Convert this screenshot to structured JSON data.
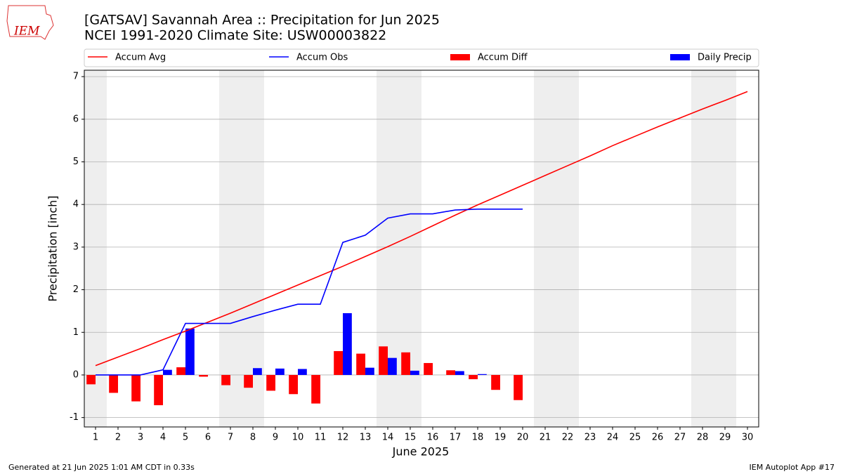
{
  "chart_data": {
    "type": "combo",
    "title": "[GATSAV] Savannah Area :: Precipitation for Jun 2025",
    "subtitle": "NCEI 1991-2020 Climate Site: USW00003822",
    "logo_text": "IEM",
    "x_label": "June 2025",
    "y_label": "Precipitation [inch]",
    "footer_left": "Generated at 21 Jun 2025 1:01 AM CDT in 0.33s",
    "footer_right": "IEM Autoplot App #17",
    "x": [
      1,
      2,
      3,
      4,
      5,
      6,
      7,
      8,
      9,
      10,
      11,
      12,
      13,
      14,
      15,
      16,
      17,
      18,
      19,
      20,
      21,
      22,
      23,
      24,
      25,
      26,
      27,
      28,
      29,
      30
    ],
    "xlim": [
      0.5,
      30.5
    ],
    "xticks": [
      1,
      2,
      3,
      4,
      5,
      6,
      7,
      8,
      9,
      10,
      11,
      12,
      13,
      14,
      15,
      16,
      17,
      18,
      19,
      20,
      21,
      22,
      23,
      24,
      25,
      26,
      27,
      28,
      29,
      30
    ],
    "ylim": [
      -1.22,
      7.15
    ],
    "yticks": [
      -1,
      0,
      1,
      2,
      3,
      4,
      5,
      6,
      7
    ],
    "grid": true,
    "legend": "top",
    "shading": {
      "color": "#eeeeee",
      "spans": [
        [
          0.5,
          1.5
        ],
        [
          6.5,
          8.5
        ],
        [
          13.5,
          15.5
        ],
        [
          20.5,
          22.5
        ],
        [
          27.5,
          29.5
        ]
      ]
    },
    "series": [
      {
        "name": "Accum Avg",
        "kind": "line",
        "color": "#ff0000",
        "values": [
          0.22,
          0.42,
          0.62,
          0.83,
          1.03,
          1.24,
          1.45,
          1.67,
          1.89,
          2.11,
          2.33,
          2.55,
          2.78,
          3.01,
          3.25,
          3.5,
          3.75,
          3.99,
          4.22,
          4.45,
          4.68,
          4.91,
          5.14,
          5.38,
          5.6,
          5.82,
          6.03,
          6.24,
          6.44,
          6.65
        ]
      },
      {
        "name": "Accum Obs",
        "kind": "line",
        "color": "#0000ff",
        "values": [
          0,
          0,
          0,
          0.12,
          1.21,
          1.21,
          1.21,
          1.37,
          1.52,
          1.66,
          1.66,
          3.11,
          3.28,
          3.68,
          3.78,
          3.78,
          3.87,
          3.89,
          3.89,
          3.89,
          null,
          null,
          null,
          null,
          null,
          null,
          null,
          null,
          null,
          null
        ]
      },
      {
        "name": "Accum Diff",
        "kind": "bar",
        "side": "left",
        "color": "#ff0000",
        "values": [
          -0.22,
          -0.42,
          -0.62,
          -0.71,
          0.18,
          -0.04,
          -0.24,
          -0.3,
          -0.37,
          -0.45,
          -0.67,
          0.56,
          0.5,
          0.67,
          0.53,
          0.28,
          0.11,
          -0.1,
          -0.35,
          -0.59,
          null,
          null,
          null,
          null,
          null,
          null,
          null,
          null,
          null,
          null
        ]
      },
      {
        "name": "Daily Precip",
        "kind": "bar",
        "side": "right",
        "color": "#0000ff",
        "values": [
          0,
          0,
          0,
          0.12,
          1.09,
          0,
          0,
          0.16,
          0.15,
          0.14,
          0,
          1.45,
          0.17,
          0.4,
          0.1,
          0,
          0.09,
          0.02,
          0,
          0,
          null,
          null,
          null,
          null,
          null,
          null,
          null,
          null,
          null,
          null
        ]
      }
    ]
  }
}
